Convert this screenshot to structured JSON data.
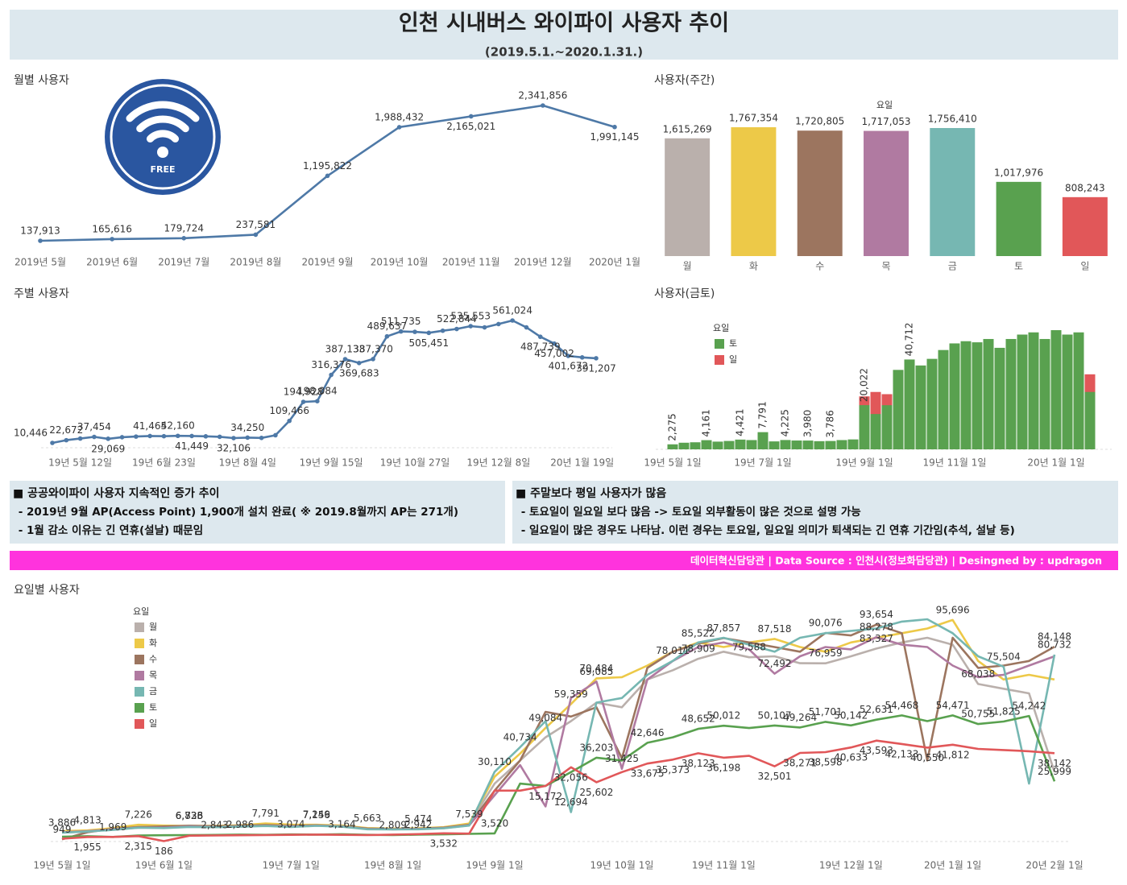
{
  "header": {
    "title": "인천 시내버스 와이파이 사용자 추이",
    "subtitle": "(2019.5.1.~2020.1.31.)"
  },
  "icon_label": "FREE",
  "notes": [
    {
      "heading": "■  공공와이파이 사용자 지속적인 증가 추이",
      "lines": [
        " - 2019년 9월 AP(Access Point) 1,900개 설치 완료( ※ 2019.8월까지 AP는 271개)",
        " - 1월 감소 이유는 긴 연휴(설날) 때문임"
      ]
    },
    {
      "heading": "■  주말보다 평일 사용자가 많음",
      "lines": [
        " - 토요일이 일요일 보다 많음 -> 토요일 외부활동이 많은 것으로 설명 가능",
        " - 일요일이 많은 경우도 나타남. 이런 경우는 토요일, 일요일 의미가 퇴색되는 긴 연휴 기간임(추석, 설날 등)"
      ]
    }
  ],
  "footer": "데이터혁신담당관 | Data Source : 인천시(정보화담당관) | Desingned by : updragon",
  "chart_data": [
    {
      "type": "line",
      "title": "월별 사용자",
      "color": "#4e79a7",
      "categories": [
        "2019년 5월",
        "2019년 6월",
        "2019년 7월",
        "2019년 8월",
        "2019년 9월",
        "2019년 10월",
        "2019년 11월",
        "2019년 12월",
        "2020년 1월"
      ],
      "values": [
        137913,
        165616,
        179724,
        237581,
        1195822,
        1988432,
        2165021,
        2341856,
        1991145
      ],
      "value_labels": [
        "137,913",
        "165,616",
        "179,724",
        "237,581",
        "1,195,822",
        "1,988,432",
        "2,165,021",
        "2,341,856",
        "1,991,145"
      ]
    },
    {
      "type": "bar",
      "title": "사용자(주간)",
      "legend_title": "요일",
      "categories": [
        "월",
        "화",
        "수",
        "목",
        "금",
        "토",
        "일"
      ],
      "values": [
        1615269,
        1767354,
        1720805,
        1717053,
        1756410,
        1017976,
        808243
      ],
      "value_labels": [
        "1,615,269",
        "1,767,354",
        "1,720,805",
        "1,717,053",
        "1,756,410",
        "1,017,976",
        "808,243"
      ],
      "colors": [
        "#bab0ac",
        "#edc948",
        "#9c755f",
        "#b07aa1",
        "#76b7b2",
        "#59a14f",
        "#e15759"
      ]
    },
    {
      "type": "line",
      "title": "주별 사용자",
      "color": "#4e79a7",
      "categories": [
        null,
        null,
        "19년 5월 12일",
        null,
        null,
        null,
        null,
        null,
        "19년 6월 23일",
        null,
        null,
        null,
        null,
        null,
        "19년 8월 4일",
        null,
        null,
        null,
        null,
        null,
        "19년 9월 15일",
        null,
        null,
        null,
        null,
        null,
        "19년 10월 27일",
        null,
        null,
        null,
        null,
        null,
        "19년 12월 8일",
        null,
        null,
        null,
        null,
        null,
        "20년 1월 19일",
        null
      ],
      "values": [
        10446,
        22672,
        30000,
        37454,
        29069,
        36000,
        39000,
        41465,
        40500,
        42160,
        41449,
        40000,
        38000,
        32106,
        34250,
        33000,
        45000,
        109466,
        194928,
        198084,
        316376,
        387133,
        369683,
        387370,
        489637,
        511735,
        510000,
        505451,
        515000,
        522844,
        535553,
        530000,
        545000,
        561024,
        530000,
        487739,
        457002,
        401672,
        395000,
        391207
      ],
      "value_labels": [
        "10,446",
        "22,672",
        null,
        "37,454",
        "29,069",
        null,
        null,
        "41,465",
        null,
        "42,160",
        "41,449",
        null,
        null,
        "32,106",
        "34,250",
        null,
        null,
        "109,466",
        "194,928",
        "198,084",
        "316,376",
        "387,133",
        "369,683",
        "387,370",
        "489,637",
        "511,735",
        null,
        "505,451",
        null,
        "522,844",
        "535,553",
        null,
        null,
        "561,024",
        null,
        "487,739",
        "457,002",
        "401,672",
        null,
        "391,207"
      ]
    },
    {
      "type": "bar",
      "title": "사용자(금토)",
      "legend_title": "요일",
      "categories": [
        "19년 5월 1일",
        null,
        null,
        null,
        null,
        null,
        null,
        null,
        "19년 7월 1일",
        null,
        null,
        null,
        null,
        null,
        null,
        null,
        null,
        "19년 9월 1일",
        null,
        null,
        null,
        null,
        null,
        null,
        null,
        "19년 11월 1일",
        null,
        null,
        null,
        null,
        null,
        null,
        null,
        null,
        "20년 1월 1일",
        null,
        null,
        null
      ],
      "series": [
        {
          "name": "토",
          "color": "#59a14f",
          "values": [
            2275,
            3000,
            3200,
            4161,
            3500,
            3800,
            4421,
            4200,
            7791,
            3600,
            4225,
            4000,
            3980,
            3700,
            3786,
            4200,
            4500,
            20022,
            16000,
            20000,
            36000,
            40712,
            38000,
            41000,
            45000,
            48000,
            49000,
            48500,
            50000,
            46000,
            50000,
            52000,
            53000,
            50000,
            54000,
            52000,
            53000,
            26000
          ],
          "value_labels": [
            "2,275",
            null,
            null,
            "4,161",
            null,
            null,
            "4,421",
            null,
            "7,791",
            null,
            "4,225",
            null,
            "3,980",
            null,
            "3,786",
            null,
            null,
            "20,022",
            null,
            null,
            null,
            "40,712",
            null,
            null,
            null,
            null,
            null,
            null,
            null,
            null,
            null,
            null,
            null,
            null,
            null,
            null,
            null,
            null
          ]
        },
        {
          "name": "일",
          "color": "#e15759",
          "values": [
            900,
            1900,
            2300,
            2400,
            1500,
            2700,
            2900,
            3000,
            3000,
            3100,
            3100,
            2800,
            2900,
            3300,
            3500,
            3500,
            3600,
            24000,
            26000,
            25000,
            30000,
            33000,
            34000,
            36000,
            38000,
            40000,
            36000,
            33000,
            38000,
            38500,
            40600,
            42000,
            40500,
            41800,
            40000,
            41000,
            39000,
            34000
          ]
        }
      ]
    },
    {
      "type": "line",
      "title": "요일별 사용자",
      "legend_title": "요일",
      "categories": [
        "19년 5월 1일",
        null,
        null,
        null,
        "19년 6월 1일",
        null,
        null,
        null,
        null,
        "19년 7월 1일",
        null,
        null,
        null,
        "19년 8월 1일",
        null,
        null,
        null,
        "19년 9월 1일",
        null,
        null,
        null,
        null,
        "19년 10월 1일",
        null,
        null,
        null,
        "19년 11월 1일",
        null,
        null,
        null,
        null,
        "19년 12월 1일",
        null,
        null,
        null,
        "20년 1월 1일",
        null,
        null,
        null,
        "20년 2월 1일"
      ],
      "series": [
        {
          "name": "월",
          "color": "#bab0ac",
          "values": [
            3886,
            4300,
            5200,
            6500,
            6400,
            6838,
            6500,
            6700,
            6900,
            6600,
            7156,
            6800,
            5663,
            5300,
            5474,
            6000,
            7539,
            25000,
            35000,
            45000,
            52000,
            60000,
            58000,
            70000,
            74000,
            78909,
            82000,
            79588,
            80000,
            77000,
            76959,
            80000,
            83327,
            86000,
            88000,
            85000,
            68038,
            66000,
            64000,
            30000
          ],
          "value_labels": [
            "3,886",
            null,
            null,
            null,
            null,
            "6,838",
            null,
            null,
            null,
            null,
            "7,156",
            null,
            "5,663",
            null,
            "5,474",
            null,
            "7,539",
            null,
            null,
            null,
            null,
            null,
            null,
            null,
            null,
            "78,909",
            null,
            "79,588",
            null,
            null,
            "76,959",
            null,
            "83,327",
            null,
            null,
            null,
            "68,038",
            null,
            null,
            null
          ]
        },
        {
          "name": "화",
          "color": "#edc948",
          "values": [
            4500,
            4813,
            5800,
            7226,
            6900,
            6723,
            6800,
            7000,
            7791,
            7300,
            7249,
            6900,
            5800,
            5600,
            5700,
            6200,
            7800,
            28000,
            38000,
            49084,
            59359,
            70484,
            71000,
            76000,
            82000,
            86000,
            84000,
            86000,
            87518,
            84000,
            82000,
            86000,
            88000,
            90000,
            92000,
            95696,
            78000,
            70000,
            72000,
            70000
          ],
          "value_labels": [
            null,
            "4,813",
            null,
            "7,226",
            null,
            "6,723",
            null,
            null,
            "7,791",
            null,
            "7,249",
            null,
            null,
            null,
            null,
            null,
            null,
            null,
            null,
            "49,084",
            "59,359",
            "70,484",
            null,
            null,
            null,
            null,
            null,
            null,
            "87,518",
            null,
            null,
            null,
            null,
            null,
            null,
            "95,696",
            null,
            null,
            null,
            null
          ]
        },
        {
          "name": "수",
          "color": "#9c755f",
          "values": [
            949,
            4000,
            5500,
            6200,
            6500,
            6736,
            6600,
            6800,
            7100,
            6700,
            7000,
            6600,
            5600,
            5400,
            5500,
            6000,
            7200,
            22000,
            35000,
            56000,
            54000,
            58000,
            36000,
            75000,
            82000,
            85522,
            87857,
            86000,
            84000,
            82000,
            90076,
            89000,
            93654,
            90000,
            35000,
            88000,
            75000,
            76000,
            78000,
            84148
          ],
          "value_labels": [
            "949",
            null,
            null,
            null,
            null,
            "6,736",
            null,
            null,
            null,
            null,
            null,
            null,
            null,
            null,
            null,
            null,
            null,
            null,
            null,
            null,
            null,
            null,
            null,
            null,
            null,
            "85,522",
            "87,857",
            null,
            null,
            null,
            "90,076",
            null,
            "93,654",
            null,
            null,
            null,
            null,
            null,
            null,
            "84,148"
          ]
        },
        {
          "name": "목",
          "color": "#b07aa1",
          "values": [
            4000,
            4500,
            5200,
            6000,
            6000,
            6500,
            6300,
            6500,
            6800,
            6500,
            6900,
            6500,
            5400,
            5300,
            5400,
            5800,
            7000,
            20000,
            33000,
            15172,
            62000,
            69085,
            31425,
            70000,
            78000,
            84000,
            86000,
            83000,
            72492,
            80000,
            84000,
            83000,
            88278,
            85000,
            84000,
            76000,
            71000,
            72000,
            76000,
            80000
          ],
          "value_labels": [
            null,
            null,
            null,
            null,
            null,
            null,
            null,
            null,
            null,
            null,
            null,
            null,
            null,
            null,
            null,
            null,
            null,
            null,
            null,
            "15,172",
            null,
            "69,085",
            "31,425",
            null,
            null,
            null,
            null,
            null,
            "72,492",
            null,
            null,
            null,
            "88,278",
            null,
            null,
            null,
            null,
            null,
            null,
            null
          ]
        },
        {
          "name": "금",
          "color": "#76b7b2",
          "values": [
            3800,
            4300,
            5000,
            6000,
            5800,
            6300,
            6200,
            6400,
            6700,
            6300,
            6800,
            6400,
            5300,
            5200,
            5300,
            5700,
            6900,
            30110,
            40734,
            52000,
            12694,
            60000,
            62000,
            72000,
            78011,
            86000,
            88000,
            85000,
            82000,
            88000,
            90000,
            91000,
            92000,
            95000,
            96000,
            90000,
            80000,
            75504,
            25000,
            80732
          ],
          "value_labels": [
            null,
            null,
            null,
            null,
            null,
            null,
            null,
            null,
            null,
            null,
            null,
            null,
            null,
            null,
            null,
            null,
            null,
            "30,110",
            "40,734",
            null,
            "12,694",
            null,
            null,
            null,
            "78,011",
            null,
            null,
            null,
            null,
            null,
            null,
            null,
            null,
            null,
            null,
            null,
            null,
            "75,504",
            null,
            "80,732"
          ]
        },
        {
          "name": "토",
          "color": "#59a14f",
          "values": [
            2100,
            2300,
            1969,
            2600,
            2700,
            2800,
            2843,
            2986,
            2900,
            3074,
            3000,
            3164,
            2900,
            2809,
            2942,
            3100,
            3300,
            3520,
            25000,
            24000,
            30000,
            36203,
            35000,
            42646,
            45000,
            48652,
            50012,
            49000,
            50107,
            49264,
            51701,
            50142,
            52631,
            54468,
            52000,
            54471,
            50755,
            51825,
            54242,
            25999
          ],
          "value_labels": [
            null,
            null,
            "1,969",
            null,
            null,
            null,
            "2,843",
            "2,986",
            null,
            "3,074",
            null,
            "3,164",
            null,
            "2,809",
            "2,942",
            null,
            null,
            "3,520",
            null,
            null,
            null,
            "36,203",
            null,
            "42,646",
            null,
            "48,652",
            "50,012",
            null,
            "50,107",
            "49,264",
            "51,701",
            "50,142",
            "52,631",
            "54,468",
            null,
            "54,471",
            "50,755",
            "51,825",
            "54,242",
            "25,999"
          ]
        },
        {
          "name": "일",
          "color": "#e15759",
          "values": [
            1200,
            1955,
            2000,
            2315,
            186,
            2500,
            2600,
            2700,
            2800,
            2900,
            3000,
            2900,
            2800,
            3000,
            3200,
            3532,
            3400,
            22000,
            22000,
            24000,
            32056,
            25602,
            30000,
            33675,
            35373,
            38123,
            36198,
            37000,
            32501,
            38271,
            38598,
            40633,
            43593,
            42133,
            40550,
            41812,
            40000,
            39500,
            39000,
            38142
          ],
          "value_labels": [
            null,
            "1,955",
            null,
            "2,315",
            "186",
            null,
            null,
            null,
            null,
            null,
            null,
            null,
            null,
            null,
            null,
            "3,532",
            null,
            null,
            null,
            null,
            "32,056",
            "25,602",
            null,
            "33,675",
            "35,373",
            "38,123",
            "36,198",
            null,
            "32,501",
            "38,271",
            "38,598",
            "40,633",
            "43,593",
            "42,133",
            "40,550",
            "41,812",
            null,
            null,
            null,
            "38,142"
          ]
        }
      ]
    }
  ]
}
